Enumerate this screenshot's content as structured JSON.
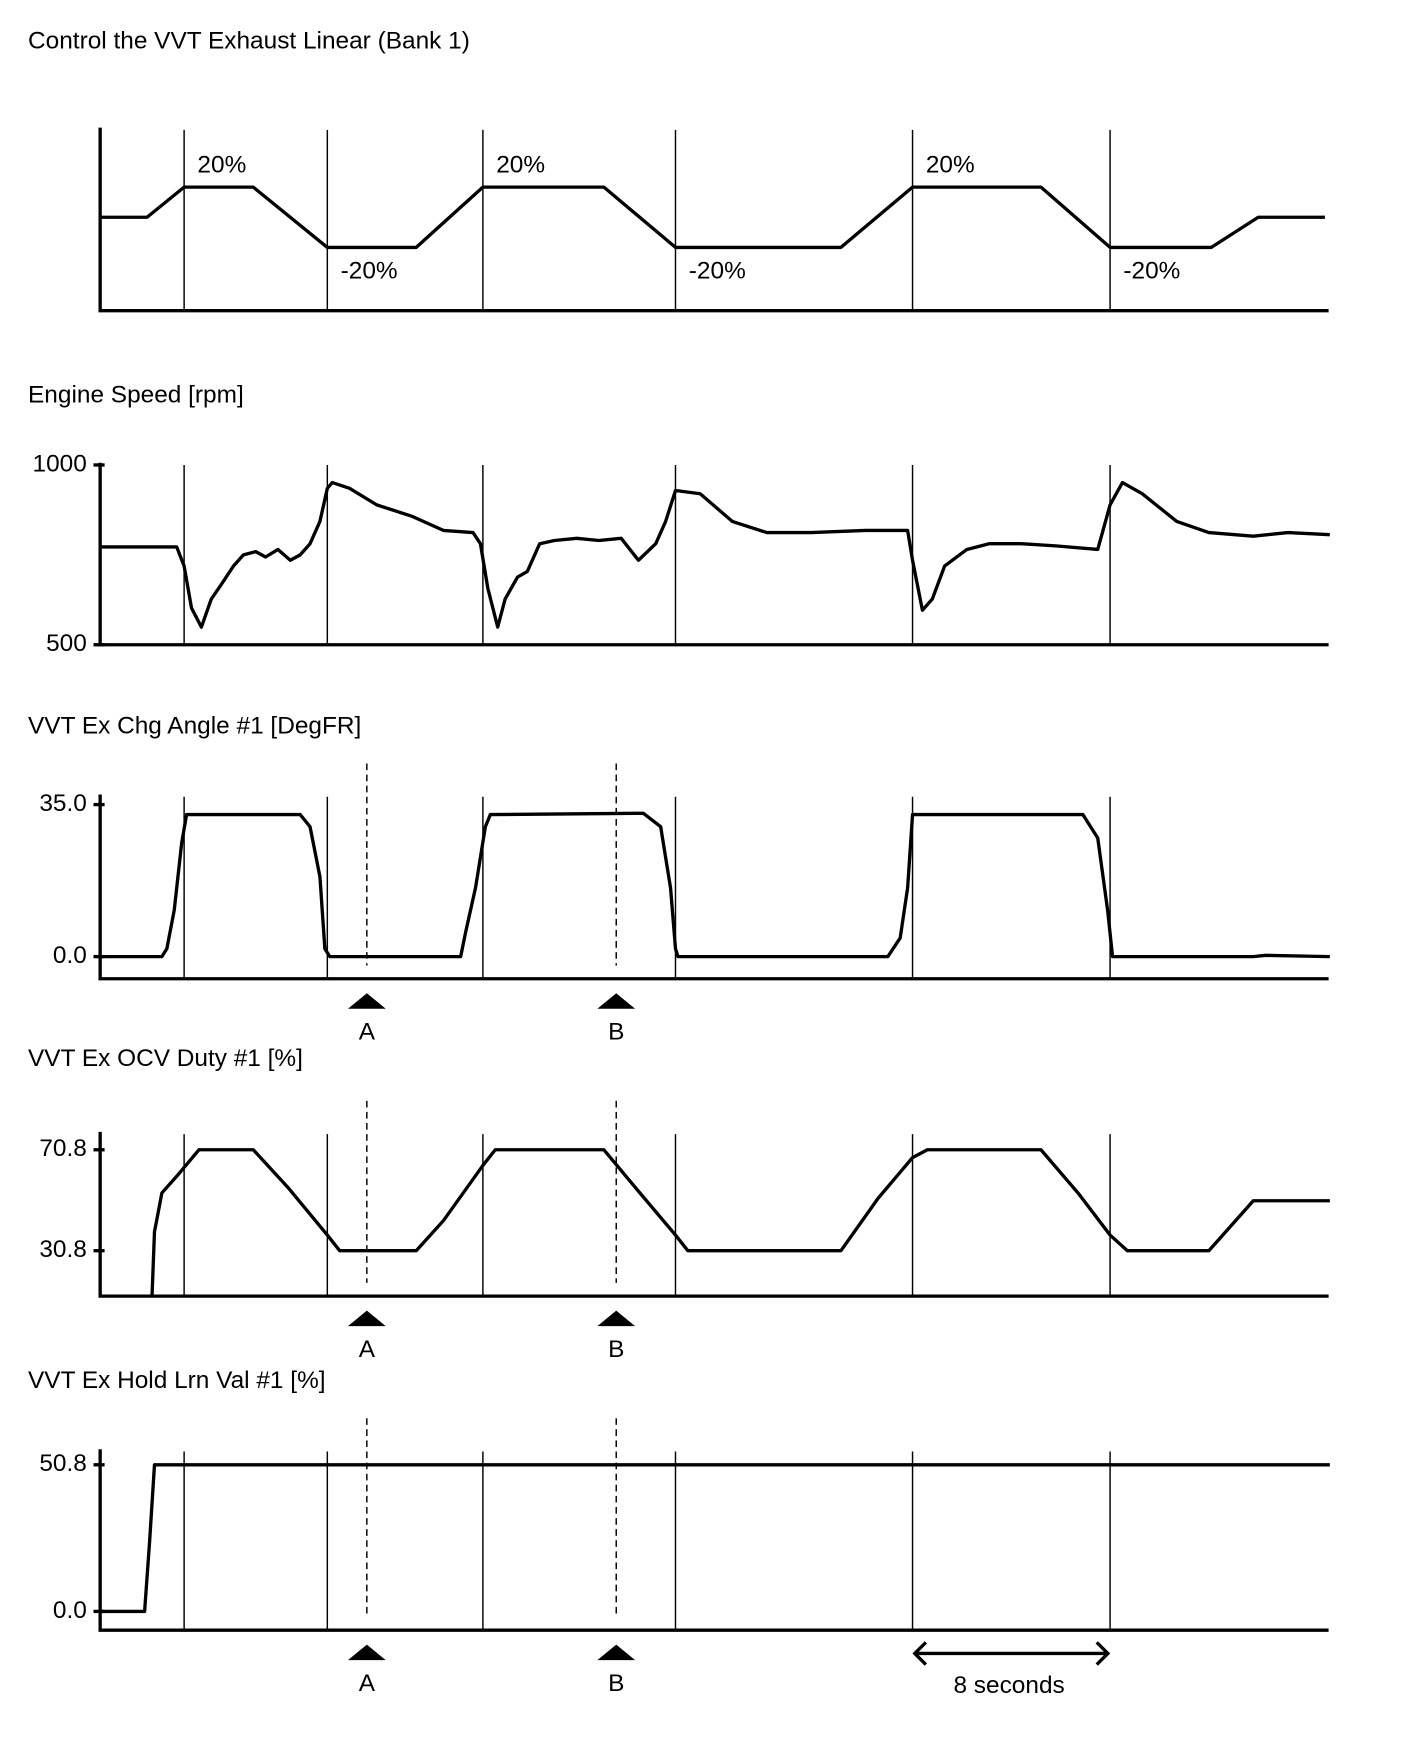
{
  "xlim": [
    0,
    49.75
  ],
  "events": [
    3.4,
    9.2,
    15.5,
    23.3,
    32.9,
    40.9
  ],
  "cursors": [
    {
      "label": "A",
      "x": 10.8
    },
    {
      "label": "B",
      "x": 20.9
    }
  ],
  "chart_data": [
    {
      "type": "line",
      "title": "Control the VVT Exhaust Linear (Bank 1)",
      "color": "#000000",
      "x": [
        0.0,
        1.9,
        3.4,
        6.2,
        9.2,
        12.8,
        15.5,
        20.4,
        23.3,
        30.0,
        32.9,
        38.1,
        40.9,
        45.0,
        46.9,
        49.6
      ],
      "values": [
        0,
        0,
        20,
        20,
        -20,
        -20,
        20,
        20,
        -20,
        -20,
        20,
        20,
        -20,
        -20,
        0,
        0
      ],
      "value_labels": [
        null,
        null,
        "20%",
        null,
        "-20%",
        null,
        "20%",
        null,
        "-20%",
        null,
        "20%",
        null,
        "-20%",
        null,
        null,
        null
      ],
      "ylim": [
        -62,
        58
      ],
      "cursors": false
    },
    {
      "type": "line",
      "title": "Engine Speed [rpm]",
      "color": "#000000",
      "x": [
        0.0,
        3.1,
        3.4,
        3.7,
        4.1,
        4.5,
        4.9,
        5.4,
        5.8,
        6.3,
        6.7,
        7.2,
        7.7,
        8.1,
        8.5,
        8.9,
        9.2,
        9.4,
        10.1,
        11.2,
        12.6,
        13.9,
        15.1,
        15.4,
        15.7,
        16.1,
        16.4,
        16.9,
        17.3,
        17.8,
        18.4,
        19.3,
        20.2,
        21.1,
        21.8,
        22.5,
        22.9,
        23.3,
        24.3,
        25.6,
        27.0,
        28.8,
        31.0,
        32.7,
        32.9,
        33.3,
        33.7,
        34.2,
        35.1,
        36.0,
        37.3,
        38.7,
        40.4,
        40.9,
        41.4,
        42.2,
        43.6,
        44.9,
        46.7,
        48.1,
        49.8
      ],
      "values": [
        772,
        772,
        719,
        602,
        549,
        627,
        667,
        719,
        750,
        759,
        744,
        765,
        735,
        750,
        781,
        843,
        935,
        951,
        935,
        889,
        858,
        818,
        812,
        781,
        657,
        549,
        627,
        688,
        704,
        781,
        790,
        796,
        790,
        796,
        735,
        781,
        843,
        929,
        920,
        843,
        812,
        812,
        818,
        818,
        735,
        596,
        627,
        719,
        765,
        781,
        781,
        775,
        765,
        889,
        951,
        920,
        843,
        812,
        802,
        812,
        806
      ],
      "ylim": [
        500,
        1000
      ],
      "yticks": [
        500,
        1000
      ],
      "cursors": false
    },
    {
      "type": "line",
      "title": "VVT Ex Chg Angle #1 [DegFR]",
      "color": "#000000",
      "x": [
        0,
        2.5,
        2.7,
        3.0,
        3.3,
        3.5,
        8.1,
        8.5,
        8.9,
        9.1,
        9.3,
        14.6,
        14.8,
        15.2,
        15.6,
        15.8,
        22.0,
        22.7,
        23.1,
        23.3,
        23.4,
        31.9,
        32.4,
        32.7,
        32.9,
        39.8,
        40.4,
        40.8,
        41.0,
        46.7,
        47.2,
        49.8
      ],
      "values": [
        0,
        0,
        1.8,
        10.7,
        26.1,
        32.7,
        32.7,
        29.9,
        18.4,
        1.8,
        0,
        0,
        5.6,
        15.8,
        29.9,
        32.7,
        33.0,
        29.9,
        15.8,
        1.8,
        0,
        0,
        4.3,
        15.8,
        32.7,
        32.7,
        27.3,
        10.7,
        0,
        0,
        0.3,
        0
      ],
      "ylim": [
        -5.1,
        36.8
      ],
      "yticks": [
        {
          "value": 0,
          "label": "0.0"
        },
        {
          "value": 35,
          "label": "35.0"
        }
      ],
      "cursors": true
    },
    {
      "type": "line",
      "title": "VVT Ex OCV Duty #1 [%]",
      "color": "#000000",
      "x": [
        2.1,
        2.2,
        2.5,
        3.1,
        4.0,
        6.2,
        7.6,
        9.2,
        9.7,
        12.8,
        13.9,
        15.5,
        16.0,
        20.4,
        21.6,
        23.3,
        23.8,
        30.0,
        31.5,
        32.9,
        33.5,
        38.1,
        39.6,
        40.9,
        41.6,
        44.9,
        46.7,
        49.8
      ],
      "values": [
        12.8,
        38.3,
        53.7,
        60.3,
        70.8,
        70.8,
        55.9,
        37.0,
        30.8,
        30.8,
        42.7,
        64.6,
        70.8,
        70.8,
        56.7,
        37.0,
        30.8,
        30.8,
        51.5,
        67.7,
        70.8,
        70.8,
        53.7,
        37.0,
        30.8,
        30.8,
        50.6,
        50.6
      ],
      "ylim": [
        12.8,
        77
      ],
      "yticks": [
        30.8,
        70.8
      ],
      "cursors": true
    },
    {
      "type": "line",
      "title": "VVT Ex Hold Lrn Val #1 [%]",
      "color": "#000000",
      "x": [
        0,
        1.8,
        2.0,
        2.2,
        49.8
      ],
      "values": [
        0,
        0,
        23.9,
        50.8,
        50.8
      ],
      "ylim": [
        -6.5,
        55.4
      ],
      "yticks": [
        {
          "value": 0,
          "label": "0.0"
        },
        50.8
      ],
      "cursors": true,
      "annotation": {
        "text": "8 seconds",
        "x": [
          32.9,
          40.9
        ]
      }
    }
  ]
}
